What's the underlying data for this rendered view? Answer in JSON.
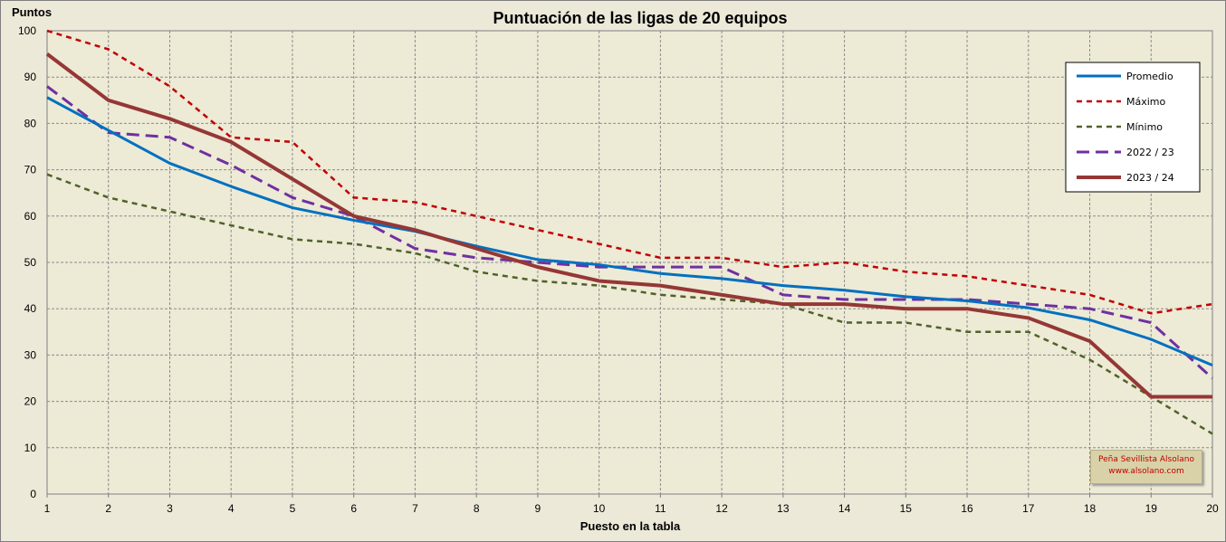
{
  "chart_data": {
    "type": "line",
    "title": "Puntuación de las ligas de 20 equipos",
    "xlabel": "Puesto en la tabla",
    "ylabel": "Puntos",
    "x": [
      1,
      2,
      3,
      4,
      5,
      6,
      7,
      8,
      9,
      10,
      11,
      12,
      13,
      14,
      15,
      16,
      17,
      18,
      19,
      20
    ],
    "ylim": [
      0,
      100
    ],
    "yticks": [
      0,
      10,
      20,
      30,
      40,
      50,
      60,
      70,
      80,
      90,
      100
    ],
    "grid": true,
    "legend_position": "top-right",
    "series": [
      {
        "name": "Promedio",
        "color": "#0070C0",
        "dash": "solid",
        "width": 3,
        "values": [
          85.6,
          78.5,
          71.4,
          66.4,
          61.8,
          59.1,
          56.7,
          53.5,
          50.6,
          49.5,
          47.6,
          46.5,
          45.0,
          44.0,
          42.6,
          41.7,
          40.2,
          37.6,
          33.4,
          27.8
        ]
      },
      {
        "name": "Máximo",
        "color": "#C00000",
        "dash": "short",
        "width": 2.5,
        "values": [
          100,
          96,
          88,
          77,
          76,
          64,
          63,
          60,
          57,
          54,
          51,
          51,
          49,
          50,
          48,
          47,
          45,
          43,
          39,
          41
        ]
      },
      {
        "name": "Mínimo",
        "color": "#4F6228",
        "dash": "short",
        "width": 2.5,
        "values": [
          69,
          64,
          61,
          58,
          55,
          54,
          52,
          48,
          46,
          45,
          43,
          42,
          41,
          37,
          37,
          35,
          35,
          29,
          21,
          13
        ]
      },
      {
        "name": "2022 / 23",
        "color": "#7030A0",
        "dash": "long",
        "width": 3,
        "values": [
          88,
          78,
          77,
          71,
          64,
          60,
          53,
          51,
          50,
          49,
          49,
          49,
          43,
          42,
          42,
          42,
          41,
          40,
          37,
          25
        ]
      },
      {
        "name": "2023 / 24",
        "color": "#953735",
        "dash": "solid",
        "width": 4,
        "values": [
          95,
          85,
          81,
          76,
          68,
          60,
          57,
          53,
          49,
          46,
          45,
          43,
          41,
          41,
          40,
          40,
          38,
          33,
          21,
          21
        ]
      }
    ]
  },
  "credit": {
    "line1": "Peña Sevillista Alsolano",
    "line2": "www.alsolano.com"
  }
}
